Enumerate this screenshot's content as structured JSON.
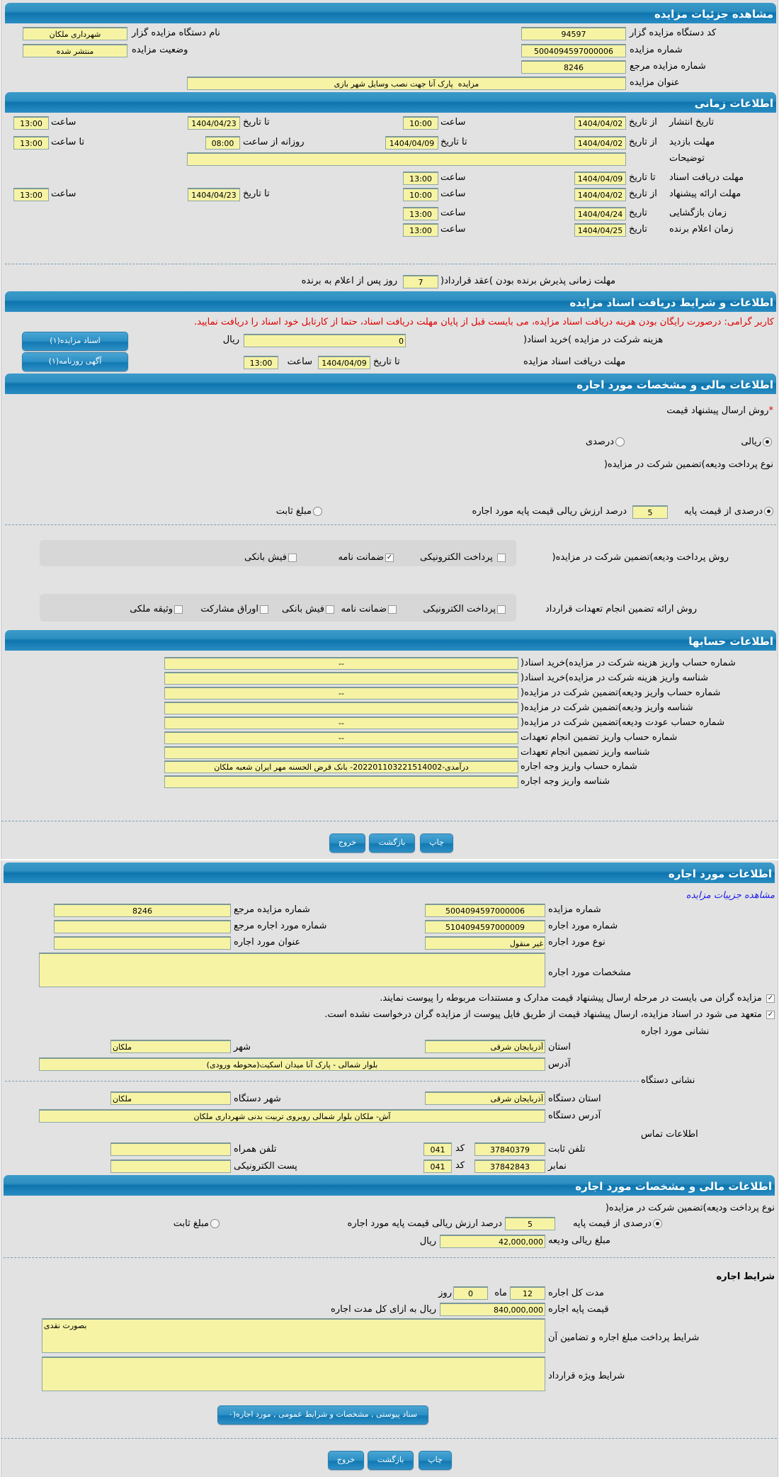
{
  "details": {
    "title": "مشاهده جزئیات مزایده",
    "org_code_label": "کد دستگاه مزایده گزار",
    "org_code": "94597",
    "auction_no_label": "شماره مزایده",
    "auction_no": "5004094597000006",
    "ref_no_label": "شماره مزایده مرجع",
    "ref_no": "8246",
    "auction_title_label": "عنوان مزایده",
    "auction_title": "مزایده  پارک آنا جهت نصب وسایل شهر بازی",
    "org_name_label": "نام دستگاه مزایده گزار",
    "org_name": "شهرداری ملکان",
    "status_label": "وضعیت مزایده",
    "status": "منتشر شده"
  },
  "timing": {
    "title": "اطلاعات زمانی",
    "publish": {
      "label": "تاریخ انتشار",
      "from_label": "از تاریخ",
      "from_date": "1404/04/02",
      "time1_label": "ساعت",
      "from_time": "10:00",
      "to_label": "تا تاریخ",
      "to_date": "1404/04/23",
      "time2_label": "ساعت",
      "to_time": "13:00"
    },
    "visit": {
      "label": "مهلت بازدید",
      "from_label": "از تاریخ",
      "from_date": "1404/04/02",
      "to_label": "تا تاریخ",
      "to_date": "1404/04/09",
      "daily_label": "روزانه از ساعت",
      "daily_from": "08:00",
      "until_label": "تا ساعت",
      "daily_to": "13:00"
    },
    "notes": {
      "label": "توضیحات",
      "value": ""
    },
    "doc_receive": {
      "label": "مهلت دریافت اسناد",
      "to_label": "تا تاریخ",
      "to_date": "1404/04/09",
      "time_label": "ساعت",
      "time": "13:00"
    },
    "offer": {
      "label": "مهلت ارائه پیشنهاد",
      "from_label": "از تاریخ",
      "from_date": "1404/04/02",
      "time1_label": "ساعت",
      "from_time": "10:00",
      "to_label": "تا تاریخ",
      "to_date": "1404/04/23",
      "time2_label": "ساعت",
      "to_time": "13:00"
    },
    "opening": {
      "label": "زمان بازگشایی",
      "date_label": "تاریخ",
      "date": "1404/04/24",
      "time_label": "ساعت",
      "time": "13:00"
    },
    "winner": {
      "label": "زمان اعلام برنده",
      "date_label": "تاریخ",
      "date": "1404/04/25",
      "time_label": "ساعت",
      "time": "13:00"
    },
    "acceptance": {
      "label": "مهلت زمانی پذیرش برنده بودن )عقد قرارداد(",
      "days": "7",
      "suffix": "روز پس از اعلام به برنده"
    }
  },
  "documents": {
    "title": "اطلاعات و شرایط دریافت اسناد مزایده",
    "notice": "کاربر گرامی: درصورت رایگان بودن هزینه دریافت اسناد مزایده، می بایست قبل از پایان مهلت دریافت اسناد، حتما از کارتابل خود اسناد را دریافت نمایید.",
    "fee_label": "هزینه شرکت در مزایده )خرید اسناد(",
    "fee": "0",
    "currency": "ریال",
    "deadline_label": "مهلت دریافت اسناد مزایده",
    "to_label": "تا تاریخ",
    "to_date": "1404/04/09",
    "time_label": "ساعت",
    "time": "13:00",
    "docs_button": "اسناد مزایده(۱)",
    "ad_button": "آگهی روزنامه(۱)"
  },
  "financial": {
    "title": "اطلاعات مالی و مشخصات مورد اجاره",
    "required_mark": "*",
    "price_method_label": "روش ارسال پیشنهاد قیمت",
    "price_methods": [
      {
        "label": "ریالی",
        "selected": true
      },
      {
        "label": "درصدی",
        "selected": false
      }
    ],
    "deposit_type_label": "نوع پرداخت ودیعه)تضمین شرکت در مزایده(",
    "deposit_percent_label": "درصدی از قیمت پایه",
    "deposit_percent_selected": true,
    "deposit_percent": "5",
    "deposit_percent_suffix": "درصد ارزش ریالی قیمت پایه مورد اجاره",
    "deposit_fixed_label": "مبلغ ثابت",
    "deposit_fixed_selected": false,
    "deposit_method_label": "روش پرداخت ودیعه)تضمین شرکت در مزایده(",
    "deposit_methods": [
      {
        "label": "پرداخت الکترونیکی",
        "checked": false
      },
      {
        "label": "ضمانت نامه",
        "checked": true
      },
      {
        "label": "فیش بانکی",
        "checked": false
      }
    ],
    "guarantee_label": "روش ارائه تضمین انجام تعهدات قرارداد",
    "guarantee_methods": [
      {
        "label": "پرداخت الکترونیکی",
        "checked": false
      },
      {
        "label": "ضمانت نامه",
        "checked": false
      },
      {
        "label": "فیش بانکی",
        "checked": false
      },
      {
        "label": "اوراق مشارکت",
        "checked": false
      },
      {
        "label": "وثیقه ملکی",
        "checked": false
      }
    ]
  },
  "accounts": {
    "title": "اطلاعات حسابها",
    "rows": [
      {
        "label": "شماره حساب واریز هزینه شرکت در مزایده)خرید اسناد(",
        "value": "--"
      },
      {
        "label": "شناسه واریز هزینه شرکت در مزایده)خرید اسناد(",
        "value": ""
      },
      {
        "label": "شماره حساب واریز ودیعه)تضمین شرکت در مزایده(",
        "value": "--"
      },
      {
        "label": "شناسه واریز ودیعه)تضمین شرکت در مزایده(",
        "value": ""
      },
      {
        "label": "شماره حساب عودت ودیعه)تضمین شرکت در مزایده(",
        "value": "--"
      },
      {
        "label": "شماره حساب واریز تضمین انجام تعهدات",
        "value": "--"
      },
      {
        "label": "شناسه واریز تضمین انجام تعهدات",
        "value": ""
      },
      {
        "label": "شماره حساب واریز وجه اجاره",
        "value": "درآمدی-202201103221514002- بانک قرض الحسنه مهر ایران شعبه ملکان"
      },
      {
        "label": "شناسه واریز وجه اجاره",
        "value": ""
      }
    ]
  },
  "actions": {
    "print": "چاپ",
    "back": "بازگشت",
    "exit": "خروج"
  },
  "lease_item": {
    "title": "اطلاعات مورد اجاره",
    "details_link": "مشاهده جزییات مزایده",
    "auction_no_label": "شماره مزایده",
    "auction_no": "5004094597000006",
    "ref_no_label": "شماره مزایده مرجع",
    "ref_no": "8246",
    "item_no_label": "شماره مورد اجاره",
    "item_no": "5104094597000009",
    "item_ref_label": "شماره مورد اجاره مرجع",
    "item_ref": "",
    "item_type_label": "نوع مورد اجاره",
    "item_type": "غیر منقول",
    "item_title_label": "عنوان مورد اجاره",
    "item_title": "",
    "specs_label": "مشخصات مورد اجاره",
    "specs": "",
    "check1": "مزایده گران می بایست در مرحله ارسال پیشنهاد قیمت مدارک و مستندات مربوطه را پیوست نمایند.",
    "check2": "متعهد می شود در اسناد مزایده، ارسال پیشنهاد قیمت از طریق فایل پیوست از مزایده گران درخواست نشده است.",
    "address_heading": "نشانی مورد اجاره",
    "province_label": "استان",
    "province": "آذربایجان شرقی",
    "city_label": "شهر",
    "city": "ملکان",
    "address_label": "آدرس",
    "address": "بلوار شمالی - پارک آنا میدان اسکیت(محوطه ورودی)",
    "org_address_heading": "نشانی دستگاه",
    "org_province_label": "استان دستگاه",
    "org_province": "آذربایجان شرقی",
    "org_city_label": "شهر دستگاه",
    "org_city": "ملکان",
    "org_address_label": "آدرس دستگاه",
    "org_address": "آش- ملکان بلوار شمالی روبروی تربیت بدنی شهرداری ملکان",
    "contact_heading": "اطلاعات تماس",
    "phone_label": "تلفن ثابت",
    "phone": "37840379",
    "code_label": "کد",
    "phone_code": "041",
    "mobile_label": "تلفن همراه",
    "mobile": "",
    "fax_label": "نمابر",
    "fax": "37842843",
    "fax_code": "041",
    "email_label": "پست الکترونیکی",
    "email": ""
  },
  "lease_financial": {
    "title": "اطلاعات مالی و مشخصات مورد اجاره",
    "deposit_type_label": "نوع پرداخت ودیعه)تضمین شرکت در مزایده(",
    "percent_label": "درصدی از قیمت پایه",
    "percent": "5",
    "percent_suffix": "درصد ارزش ریالی قیمت پایه مورد اجاره",
    "fixed_label": "مبلغ ثابت",
    "deposit_amount_label": "مبلغ ریالی ودیعه",
    "deposit_amount": "42,000,000",
    "currency": "ریال",
    "terms_heading": "شرایط اجاره",
    "duration_label": "مدت کل اجاره",
    "months": "12",
    "months_label": "ماه",
    "days": "0",
    "days_label": "روز",
    "base_price_label": "قیمت پایه اجاره",
    "base_price": "840,000,000",
    "base_price_suffix": "ریال به ازای کل مدت اجاره",
    "payment_terms_label": "شرایط پرداخت مبلغ اجاره و تضامین آن",
    "payment_terms": "بصورت نقدی",
    "special_terms_label": "شرایط ویژه قرارداد",
    "special_terms": "",
    "attachments_button": "سناد پیوستی , مشخصات و شرایط عمومی , مورد اجاره(۰"
  }
}
